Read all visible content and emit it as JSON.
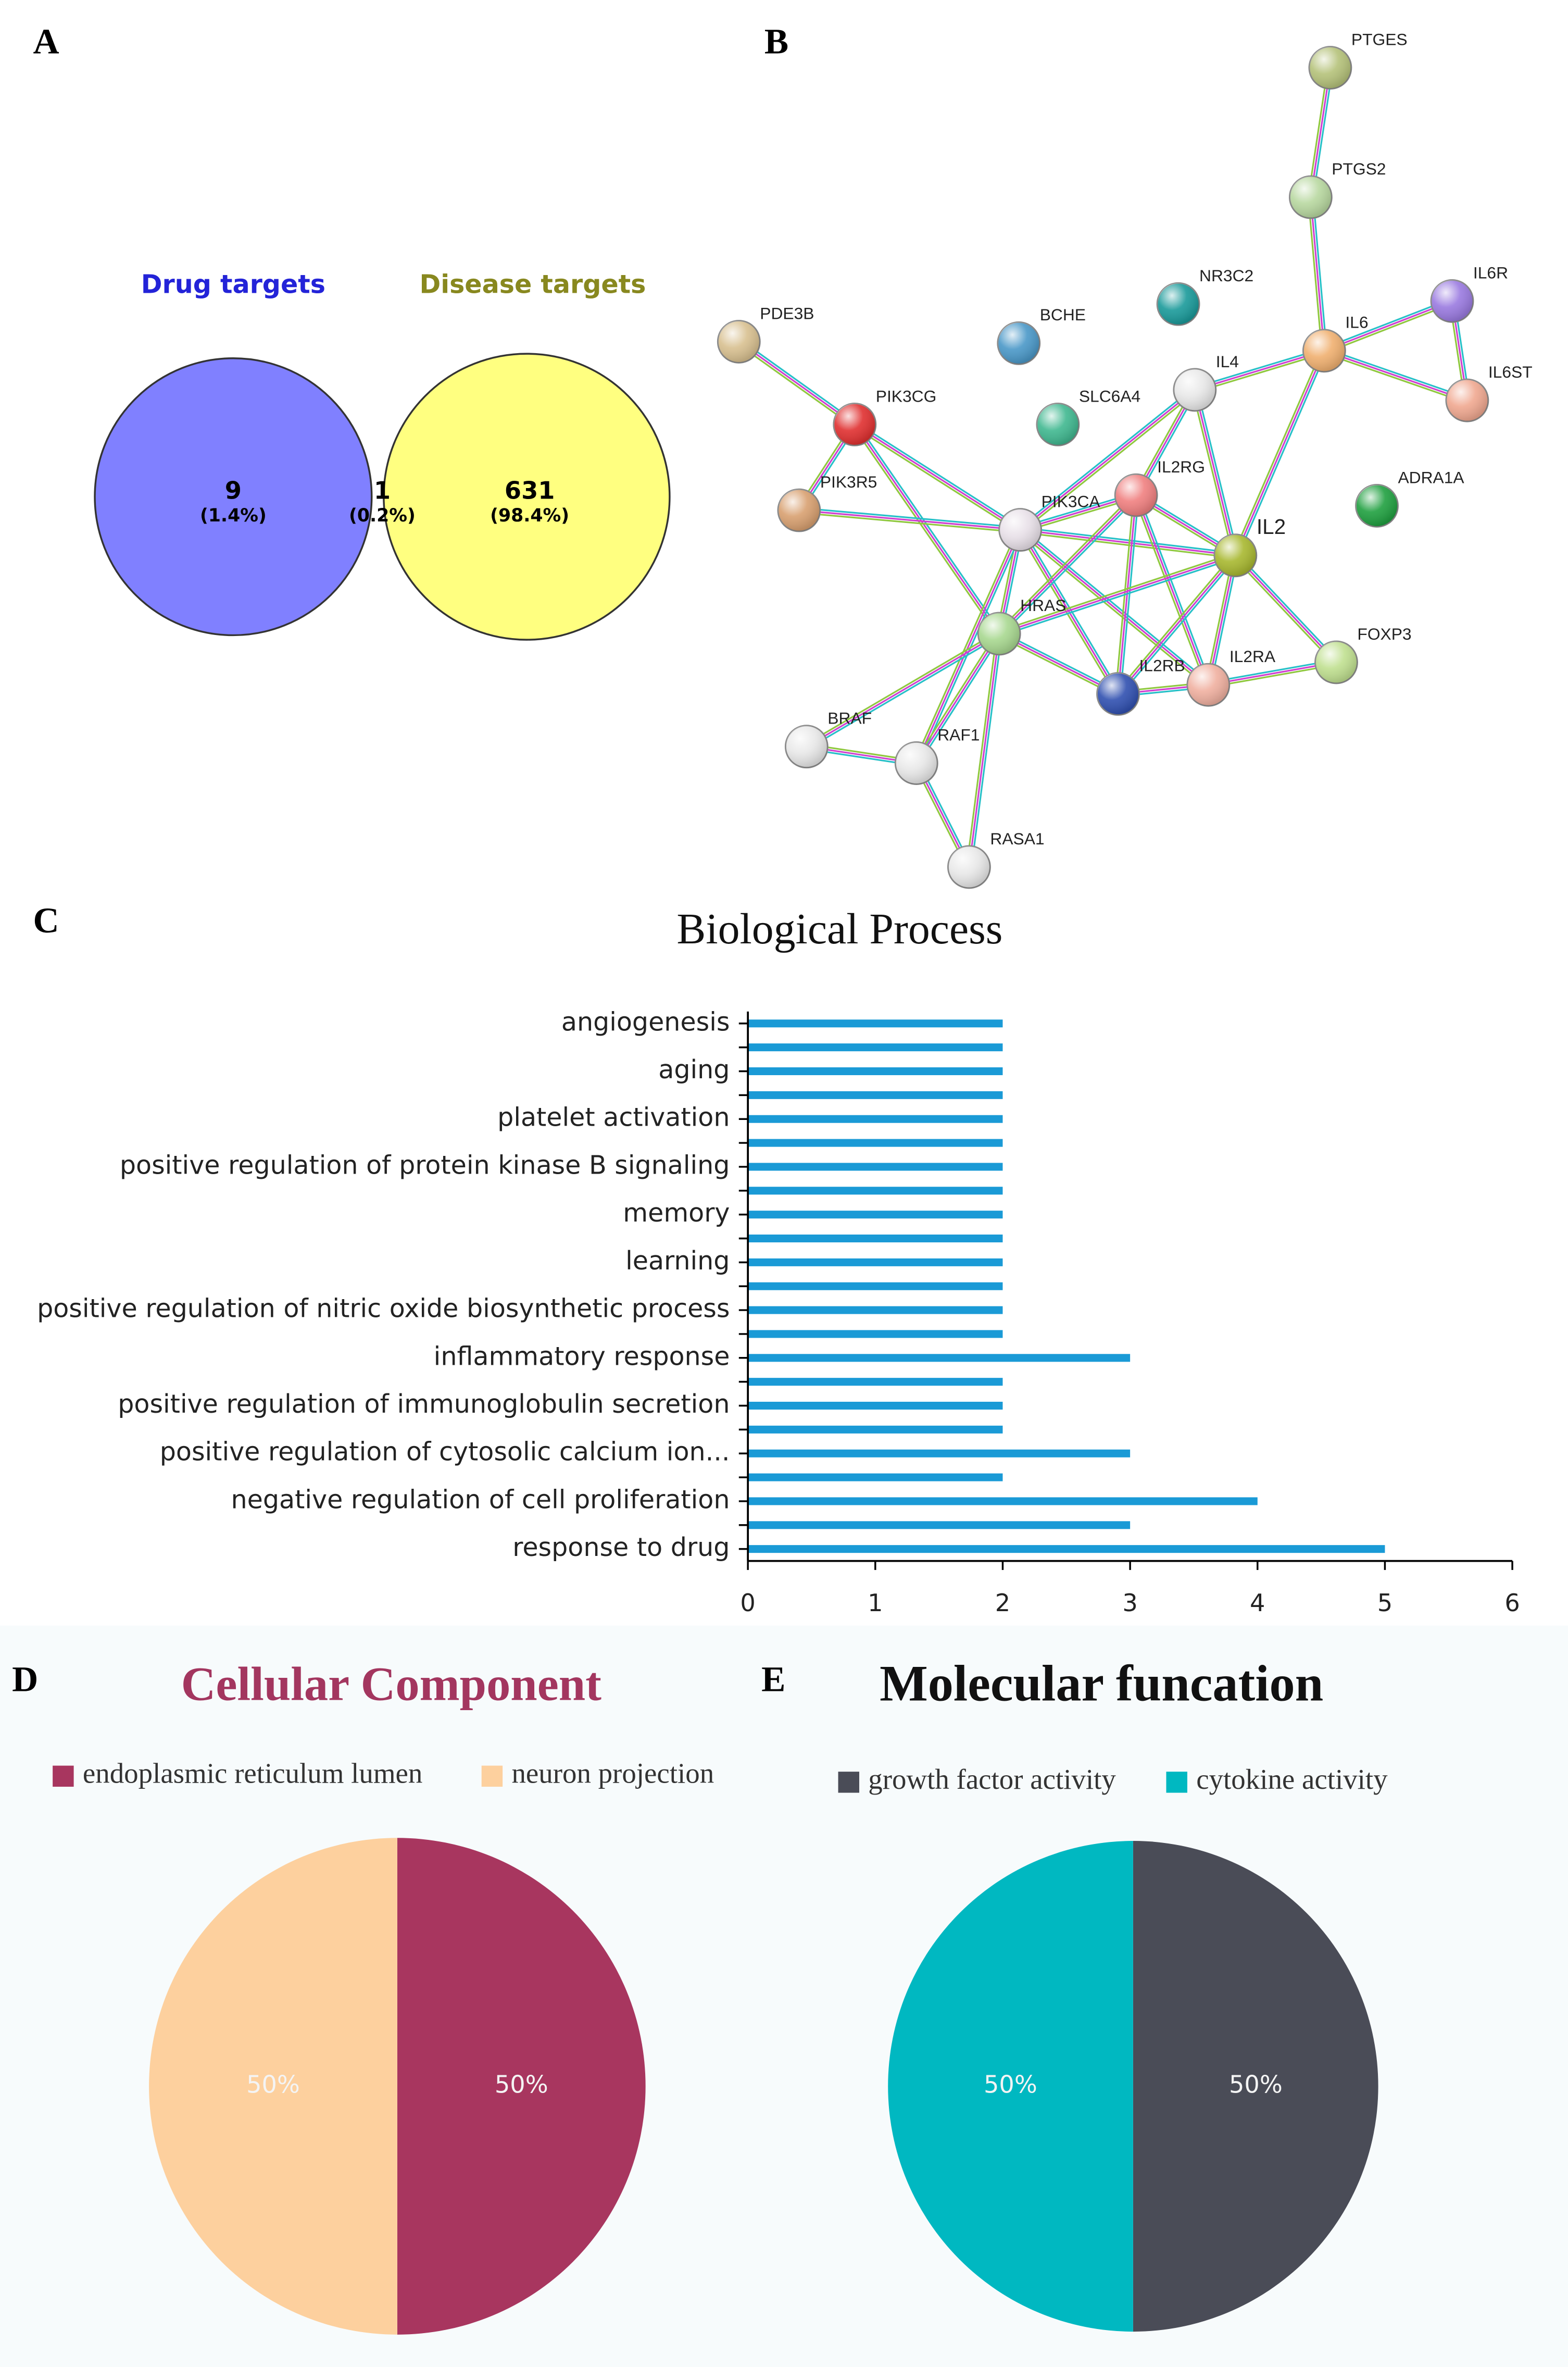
{
  "panels": [
    "A",
    "B",
    "C",
    "D",
    "E"
  ],
  "network": {
    "nodes": [
      "PTGES",
      "PTGS2",
      "NR3C2",
      "BCHE",
      "IL6R",
      "IL6",
      "PDE3B",
      "IL4",
      "IL6ST",
      "SLC6A4",
      "PIK3CG",
      "ADRA1A",
      "PIK3R5",
      "IL2RG",
      "PIK3CA",
      "IL2",
      "HRAS",
      "FOXP3",
      "IL2RB",
      "IL2RA",
      "BRAF",
      "RAF1",
      "RASA1"
    ]
  },
  "chart_data": [
    {
      "type": "venn",
      "sets": [
        {
          "name": "Drug targets",
          "color": "#8080ff",
          "label_color": "#2323d8"
        },
        {
          "name": "Disease targets",
          "color": "#ffff80",
          "label_color": "#88881f"
        }
      ],
      "overlap_color": "#b5b67a",
      "values": [
        9,
        1,
        631
      ],
      "shares": [
        1.4,
        0.2,
        98.4
      ],
      "share_labels": [
        "(1.4%)",
        "(0.2%)",
        "(98.4%)"
      ]
    },
    {
      "type": "bar",
      "orientation": "horizontal",
      "title": "Biological Process",
      "color": "#1a9ad6",
      "categories": [
        "angiogenesis",
        null,
        "aging",
        null,
        "platelet activation",
        null,
        "positive regulation of protein kinase B signaling",
        null,
        "memory",
        null,
        "learning",
        null,
        "positive regulation of nitric oxide biosynthetic process",
        null,
        "inflammatory response",
        null,
        "positive regulation of immunoglobulin secretion",
        null,
        "positive regulation of cytosolic calcium ion...",
        null,
        "negative regulation of cell proliferation",
        null,
        "response to drug"
      ],
      "values": [
        2,
        2,
        2,
        2,
        2,
        2,
        2,
        2,
        2,
        2,
        2,
        2,
        2,
        2,
        3,
        2,
        2,
        2,
        3,
        2,
        4,
        3,
        5
      ],
      "xlim": [
        0,
        6
      ],
      "xticks": [
        0,
        1,
        2,
        3,
        4,
        5,
        6
      ]
    },
    {
      "type": "pie",
      "title": "Cellular Component",
      "title_color": "#a3365f",
      "series": [
        {
          "name": "endoplasmic reticulum lumen",
          "color": "#a8365f"
        },
        {
          "name": "neuron projection",
          "color": "#fdd09e"
        }
      ],
      "values": [
        50,
        50
      ],
      "value_labels": [
        "50%",
        "50%"
      ]
    },
    {
      "type": "pie",
      "title": "Molecular funcation",
      "title_color": "#111111",
      "series": [
        {
          "name": "growth factor activity",
          "color": "#4a4c57"
        },
        {
          "name": "cytokine activity",
          "color": "#00b8c1"
        }
      ],
      "values": [
        50,
        50
      ],
      "value_labels": [
        "50%",
        "50%"
      ]
    }
  ]
}
